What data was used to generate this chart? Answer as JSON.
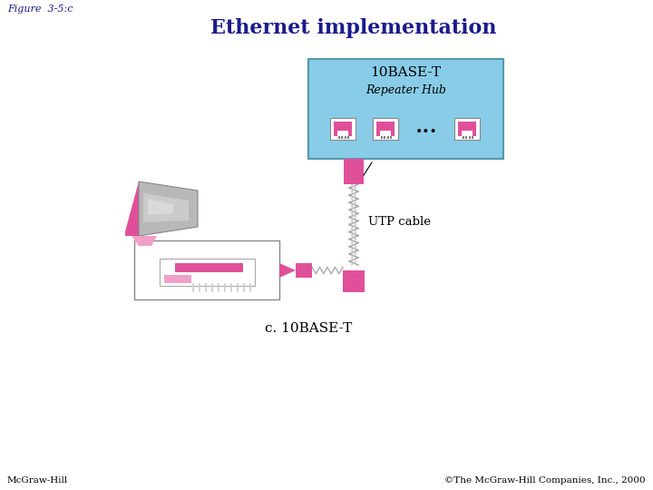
{
  "title": "Ethernet implementation",
  "figure_label": "Figure  3-5:c",
  "caption": "c. 10BASE-T",
  "bottom_left": "McGraw-Hill",
  "bottom_right": "©The McGraw-Hill Companies, Inc., 2000",
  "title_color": "#1a1a8c",
  "label_color": "#1a1a8c",
  "pink": "#e0509a",
  "light_pink": "#f0a0c8",
  "hub_box_color": "#88cce8",
  "hub_border_color": "#5599aa",
  "utp_label": "UTP cable",
  "hub_label1": "10BASE-T",
  "hub_label2": "Repeater Hub"
}
